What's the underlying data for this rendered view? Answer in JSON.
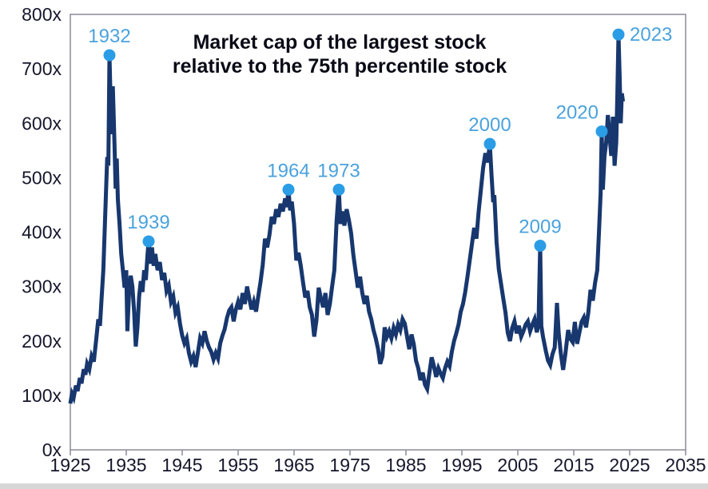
{
  "page": {
    "background": "#ffffff"
  },
  "chart_data": {
    "type": "line",
    "title": "Market cap of the largest stock relative to the 75th percentile stock",
    "title_lines": [
      "Market cap of the largest stock",
      "relative to the 75th percentile stock"
    ],
    "grid": false,
    "legend": "none",
    "x_axis": {
      "min": 1925,
      "max": 2035,
      "ticks": [
        1925,
        1935,
        1945,
        1955,
        1965,
        1975,
        1985,
        1995,
        2005,
        2015,
        2025,
        2035
      ],
      "labels": [
        "1925",
        "1935",
        "1945",
        "1955",
        "1965",
        "1975",
        "1985",
        "1995",
        "2005",
        "2015",
        "2025",
        "2035"
      ]
    },
    "y_axis": {
      "min": 0,
      "max": 800,
      "unit_suffix": "x",
      "ticks": [
        0,
        100,
        200,
        300,
        400,
        500,
        600,
        700,
        800
      ],
      "labels": [
        "0x",
        "100x",
        "200x",
        "300x",
        "400x",
        "500x",
        "600x",
        "700x",
        "800x"
      ]
    },
    "annotations": [
      {
        "label": "1932",
        "year": 1932,
        "value": 725,
        "label_pos": "above"
      },
      {
        "label": "1939",
        "year": 1939,
        "value": 383,
        "label_pos": "above"
      },
      {
        "label": "1964",
        "year": 1964,
        "value": 478,
        "label_pos": "above"
      },
      {
        "label": "1973",
        "year": 1973,
        "value": 478,
        "label_pos": "above"
      },
      {
        "label": "2000",
        "year": 2000,
        "value": 562,
        "label_pos": "above"
      },
      {
        "label": "2009",
        "year": 2009,
        "value": 375,
        "label_pos": "above"
      },
      {
        "label": "2020",
        "year": 2020,
        "value": 585,
        "label_pos": "above-left"
      },
      {
        "label": "2023",
        "year": 2023,
        "value": 763,
        "label_pos": "right"
      }
    ],
    "series": [
      {
        "name": "largest_stock_marketcap_vs_75th_percentile_ratio",
        "color": "#17376e",
        "points": [
          [
            1925.0,
            85
          ],
          [
            1925.3,
            103
          ],
          [
            1925.6,
            96
          ],
          [
            1926.0,
            118
          ],
          [
            1926.3,
            108
          ],
          [
            1926.7,
            132
          ],
          [
            1927.0,
            122
          ],
          [
            1927.4,
            148
          ],
          [
            1927.7,
            138
          ],
          [
            1928.0,
            158
          ],
          [
            1928.4,
            148
          ],
          [
            1928.8,
            172
          ],
          [
            1929.2,
            162
          ],
          [
            1929.6,
            200
          ],
          [
            1930.0,
            240
          ],
          [
            1930.3,
            228
          ],
          [
            1930.6,
            280
          ],
          [
            1930.9,
            330
          ],
          [
            1931.2,
            420
          ],
          [
            1931.4,
            480
          ],
          [
            1931.6,
            538
          ],
          [
            1931.8,
            522
          ],
          [
            1932.0,
            725
          ],
          [
            1932.2,
            640
          ],
          [
            1932.4,
            580
          ],
          [
            1932.6,
            668
          ],
          [
            1932.9,
            560
          ],
          [
            1933.1,
            480
          ],
          [
            1933.3,
            535
          ],
          [
            1933.5,
            460
          ],
          [
            1933.8,
            415
          ],
          [
            1934.1,
            360
          ],
          [
            1934.4,
            330
          ],
          [
            1934.7,
            298
          ],
          [
            1935.0,
            330
          ],
          [
            1935.2,
            218
          ],
          [
            1935.5,
            290
          ],
          [
            1935.8,
            320
          ],
          [
            1936.1,
            300
          ],
          [
            1936.4,
            255
          ],
          [
            1936.7,
            190
          ],
          [
            1937.0,
            225
          ],
          [
            1937.3,
            282
          ],
          [
            1937.6,
            310
          ],
          [
            1937.9,
            290
          ],
          [
            1938.2,
            330
          ],
          [
            1938.5,
            312
          ],
          [
            1938.8,
            358
          ],
          [
            1939.0,
            383
          ],
          [
            1939.3,
            342
          ],
          [
            1939.6,
            372
          ],
          [
            1939.9,
            338
          ],
          [
            1940.2,
            360
          ],
          [
            1940.6,
            330
          ],
          [
            1941.0,
            345
          ],
          [
            1941.4,
            312
          ],
          [
            1941.8,
            325
          ],
          [
            1942.2,
            292
          ],
          [
            1942.6,
            302
          ],
          [
            1943.0,
            272
          ],
          [
            1943.4,
            282
          ],
          [
            1943.8,
            252
          ],
          [
            1944.2,
            262
          ],
          [
            1944.6,
            232
          ],
          [
            1945.0,
            210
          ],
          [
            1945.4,
            196
          ],
          [
            1945.8,
            205
          ],
          [
            1946.2,
            178
          ],
          [
            1946.6,
            162
          ],
          [
            1947.0,
            172
          ],
          [
            1947.4,
            152
          ],
          [
            1947.8,
            178
          ],
          [
            1948.2,
            205
          ],
          [
            1948.6,
            196
          ],
          [
            1949.0,
            218
          ],
          [
            1949.4,
            200
          ],
          [
            1949.8,
            188
          ],
          [
            1950.2,
            180
          ],
          [
            1950.6,
            166
          ],
          [
            1951.0,
            178
          ],
          [
            1951.4,
            168
          ],
          [
            1951.8,
            196
          ],
          [
            1952.2,
            210
          ],
          [
            1952.6,
            222
          ],
          [
            1953.0,
            242
          ],
          [
            1953.4,
            256
          ],
          [
            1953.8,
            262
          ],
          [
            1954.2,
            236
          ],
          [
            1954.6,
            258
          ],
          [
            1955.0,
            272
          ],
          [
            1955.4,
            258
          ],
          [
            1955.8,
            288
          ],
          [
            1956.2,
            268
          ],
          [
            1956.6,
            300
          ],
          [
            1957.0,
            278
          ],
          [
            1957.4,
            258
          ],
          [
            1957.8,
            272
          ],
          [
            1958.2,
            254
          ],
          [
            1958.6,
            282
          ],
          [
            1959.0,
            308
          ],
          [
            1959.4,
            340
          ],
          [
            1959.8,
            388
          ],
          [
            1960.2,
            372
          ],
          [
            1960.6,
            395
          ],
          [
            1961.0,
            428
          ],
          [
            1961.4,
            415
          ],
          [
            1961.8,
            442
          ],
          [
            1962.2,
            428
          ],
          [
            1962.6,
            452
          ],
          [
            1963.0,
            438
          ],
          [
            1963.4,
            462
          ],
          [
            1963.7,
            446
          ],
          [
            1964.0,
            478
          ],
          [
            1964.3,
            440
          ],
          [
            1964.6,
            456
          ],
          [
            1965.0,
            415
          ],
          [
            1965.4,
            348
          ],
          [
            1965.8,
            362
          ],
          [
            1966.2,
            338
          ],
          [
            1966.6,
            308
          ],
          [
            1967.0,
            280
          ],
          [
            1967.4,
            292
          ],
          [
            1967.8,
            262
          ],
          [
            1968.2,
            248
          ],
          [
            1968.6,
            208
          ],
          [
            1969.0,
            238
          ],
          [
            1969.4,
            298
          ],
          [
            1969.8,
            278
          ],
          [
            1970.2,
            262
          ],
          [
            1970.6,
            288
          ],
          [
            1971.0,
            248
          ],
          [
            1971.4,
            268
          ],
          [
            1971.8,
            300
          ],
          [
            1972.2,
            330
          ],
          [
            1972.6,
            420
          ],
          [
            1973.0,
            478
          ],
          [
            1973.3,
            415
          ],
          [
            1973.6,
            438
          ],
          [
            1974.0,
            412
          ],
          [
            1974.4,
            442
          ],
          [
            1974.8,
            422
          ],
          [
            1975.2,
            398
          ],
          [
            1975.6,
            358
          ],
          [
            1976.0,
            328
          ],
          [
            1976.4,
            298
          ],
          [
            1976.8,
            318
          ],
          [
            1977.2,
            288
          ],
          [
            1977.6,
            268
          ],
          [
            1978.0,
            283
          ],
          [
            1978.4,
            254
          ],
          [
            1978.8,
            240
          ],
          [
            1979.2,
            220
          ],
          [
            1979.6,
            205
          ],
          [
            1980.0,
            186
          ],
          [
            1980.4,
            158
          ],
          [
            1980.8,
            172
          ],
          [
            1981.2,
            225
          ],
          [
            1981.6,
            208
          ],
          [
            1982.0,
            218
          ],
          [
            1982.4,
            205
          ],
          [
            1982.8,
            224
          ],
          [
            1983.2,
            212
          ],
          [
            1983.6,
            230
          ],
          [
            1984.0,
            220
          ],
          [
            1984.4,
            240
          ],
          [
            1984.8,
            232
          ],
          [
            1985.2,
            208
          ],
          [
            1985.6,
            185
          ],
          [
            1986.0,
            212
          ],
          [
            1986.4,
            194
          ],
          [
            1986.8,
            164
          ],
          [
            1987.2,
            150
          ],
          [
            1987.6,
            128
          ],
          [
            1988.0,
            142
          ],
          [
            1988.4,
            120
          ],
          [
            1988.8,
            112
          ],
          [
            1989.2,
            142
          ],
          [
            1989.6,
            170
          ],
          [
            1990.0,
            154
          ],
          [
            1990.4,
            134
          ],
          [
            1990.8,
            150
          ],
          [
            1991.2,
            140
          ],
          [
            1991.6,
            132
          ],
          [
            1992.0,
            150
          ],
          [
            1992.4,
            162
          ],
          [
            1992.8,
            154
          ],
          [
            1993.2,
            180
          ],
          [
            1993.6,
            200
          ],
          [
            1994.0,
            214
          ],
          [
            1994.4,
            230
          ],
          [
            1994.8,
            254
          ],
          [
            1995.2,
            268
          ],
          [
            1995.6,
            290
          ],
          [
            1996.0,
            318
          ],
          [
            1996.4,
            348
          ],
          [
            1996.8,
            378
          ],
          [
            1997.2,
            408
          ],
          [
            1997.6,
            388
          ],
          [
            1998.0,
            438
          ],
          [
            1998.4,
            478
          ],
          [
            1998.8,
            518
          ],
          [
            1999.2,
            545
          ],
          [
            1999.6,
            528
          ],
          [
            2000.0,
            562
          ],
          [
            2000.3,
            505
          ],
          [
            2000.6,
            455
          ],
          [
            2000.8,
            468
          ],
          [
            2001.2,
            382
          ],
          [
            2001.6,
            332
          ],
          [
            2002.0,
            305
          ],
          [
            2002.4,
            278
          ],
          [
            2002.8,
            252
          ],
          [
            2003.2,
            215
          ],
          [
            2003.6,
            200
          ],
          [
            2004.0,
            224
          ],
          [
            2004.4,
            236
          ],
          [
            2004.8,
            214
          ],
          [
            2005.2,
            228
          ],
          [
            2005.6,
            208
          ],
          [
            2006.0,
            218
          ],
          [
            2006.4,
            230
          ],
          [
            2006.8,
            236
          ],
          [
            2007.2,
            218
          ],
          [
            2007.6,
            230
          ],
          [
            2008.0,
            240
          ],
          [
            2008.4,
            216
          ],
          [
            2008.7,
            232
          ],
          [
            2009.0,
            375
          ],
          [
            2009.2,
            228
          ],
          [
            2009.5,
            208
          ],
          [
            2010.0,
            182
          ],
          [
            2010.4,
            164
          ],
          [
            2010.8,
            156
          ],
          [
            2011.2,
            176
          ],
          [
            2011.6,
            188
          ],
          [
            2012.0,
            270
          ],
          [
            2012.3,
            215
          ],
          [
            2012.7,
            176
          ],
          [
            2013.1,
            147
          ],
          [
            2013.5,
            176
          ],
          [
            2014.0,
            220
          ],
          [
            2014.4,
            204
          ],
          [
            2014.8,
            198
          ],
          [
            2015.2,
            235
          ],
          [
            2015.6,
            195
          ],
          [
            2016.0,
            215
          ],
          [
            2016.4,
            235
          ],
          [
            2016.8,
            243
          ],
          [
            2017.2,
            225
          ],
          [
            2017.6,
            252
          ],
          [
            2018.0,
            294
          ],
          [
            2018.4,
            274
          ],
          [
            2018.8,
            306
          ],
          [
            2019.2,
            330
          ],
          [
            2019.5,
            398
          ],
          [
            2019.8,
            470
          ],
          [
            2020.0,
            585
          ],
          [
            2020.2,
            478
          ],
          [
            2020.5,
            540
          ],
          [
            2020.8,
            565
          ],
          [
            2021.1,
            615
          ],
          [
            2021.4,
            578
          ],
          [
            2021.7,
            540
          ],
          [
            2022.0,
            612
          ],
          [
            2022.3,
            522
          ],
          [
            2022.6,
            565
          ],
          [
            2022.8,
            655
          ],
          [
            2023.0,
            763
          ],
          [
            2023.2,
            688
          ],
          [
            2023.4,
            600
          ],
          [
            2023.6,
            655
          ],
          [
            2023.8,
            640
          ]
        ]
      }
    ],
    "style": {
      "line_color": "#17376e",
      "line_width": 5,
      "marker_color": "#2b9de6",
      "marker_radius": 7.5,
      "annotation_text_color": "#4ba2dd",
      "axis_text_color": "#16162c",
      "title_color": "#0a0a16",
      "border_color": "#8a8a99",
      "background": "#ffffff"
    }
  }
}
